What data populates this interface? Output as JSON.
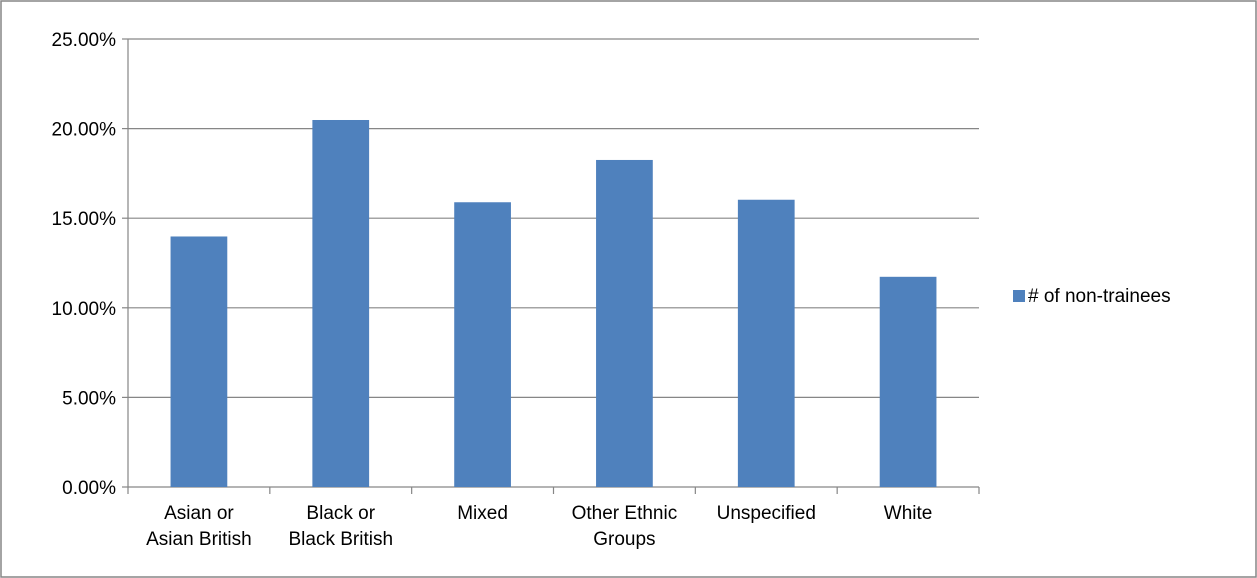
{
  "chart_data": {
    "type": "bar",
    "categories": [
      [
        "Asian or",
        "Asian British"
      ],
      [
        "Black or",
        "Black British"
      ],
      [
        "Mixed"
      ],
      [
        "Other Ethnic",
        "Groups"
      ],
      [
        "Unspecified"
      ],
      [
        "White"
      ]
    ],
    "series": [
      {
        "name": "# of non-trainees",
        "values": [
          0.1398,
          0.2048,
          0.1589,
          0.1825,
          0.1603,
          0.1173
        ]
      }
    ],
    "ylim": [
      0,
      0.25
    ],
    "yticks": [
      0,
      0.05,
      0.1,
      0.15,
      0.2,
      0.25
    ],
    "ytick_labels": [
      "0.00%",
      "5.00%",
      "10.00%",
      "15.00%",
      "20.00%",
      "25.00%"
    ],
    "grid": true,
    "legend_position": "right",
    "colors": {
      "bar": "#4f81bd",
      "grid": "#868686",
      "axis": "#868686",
      "border": "#868686"
    }
  }
}
